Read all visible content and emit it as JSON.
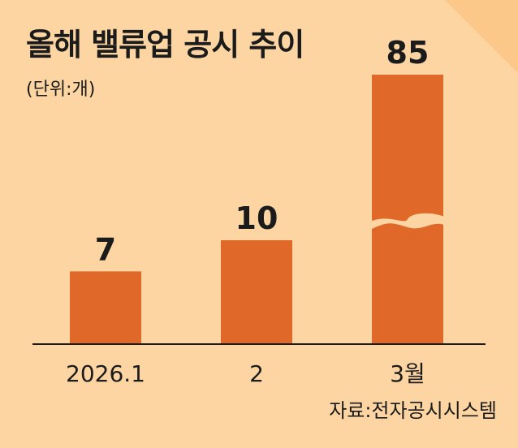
{
  "chart_data": {
    "type": "bar",
    "title": "올해 밸류업 공시 추이",
    "unit_note": "(단위:개)",
    "categories": [
      "2026.1",
      "2",
      "3월"
    ],
    "values": [
      7,
      10,
      85
    ],
    "source": "자료:전자공시시스템",
    "axis_break_on": "3월",
    "colors": {
      "background": "#fdd5a3",
      "bar": "#e0692a",
      "corner": "#fbc88a",
      "text": "#1b1b1b"
    }
  }
}
